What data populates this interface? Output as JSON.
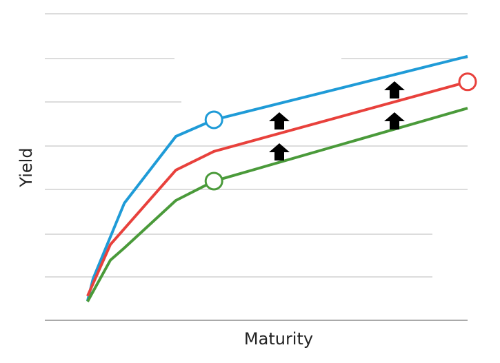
{
  "chart_data": {
    "type": "line",
    "xlabel": "Maturity",
    "ylabel": "Yield",
    "xlim": [
      0,
      100
    ],
    "ylim": [
      0,
      100
    ],
    "highlight_index": 4,
    "marker": "open-circle",
    "series": [
      {
        "color": "#1f9bd7",
        "x": [
          10.1,
          11.4,
          18.8,
          31,
          40,
          100
        ],
        "values": [
          6.3,
          13.5,
          38.2,
          60,
          65.4,
          86.1
        ]
      },
      {
        "color": "#e8413c",
        "x": [
          10.1,
          15.5,
          31,
          40,
          100
        ],
        "values": [
          7.9,
          24.7,
          49,
          55.1,
          77.8
        ]
      },
      {
        "color": "#4a9a3a",
        "x": [
          10.1,
          15.5,
          18.8,
          31,
          40,
          100
        ],
        "values": [
          6.1,
          19.6,
          23.6,
          39.1,
          45.4,
          69.2
        ]
      }
    ]
  }
}
